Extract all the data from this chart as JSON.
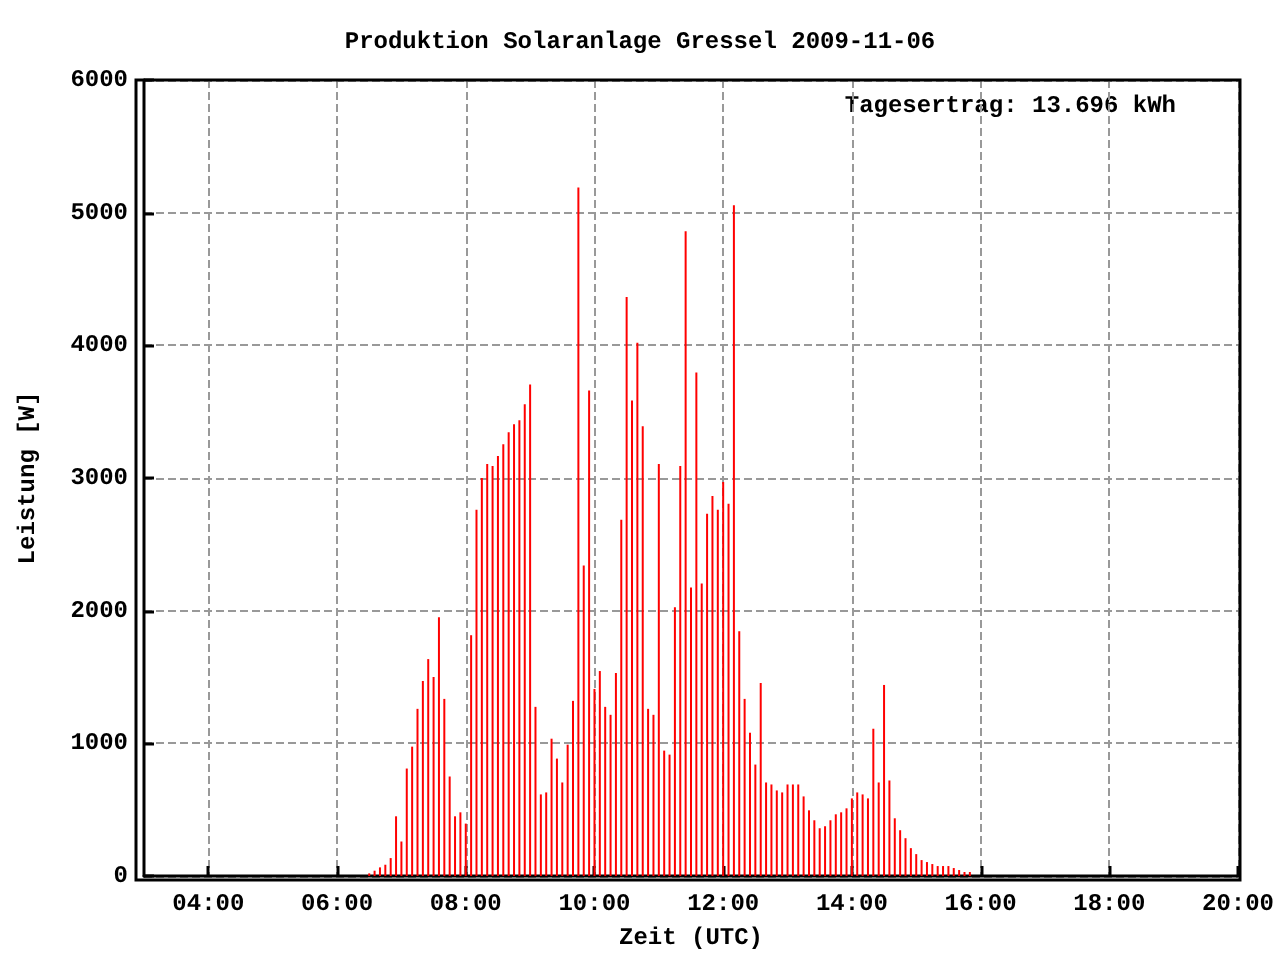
{
  "chart_data": {
    "type": "bar",
    "title": "Produktion Solaranlage Gressel 2009-11-06",
    "xlabel": "Zeit (UTC)",
    "ylabel": "Leistung [W]",
    "annotations": [
      "Tagesertrag: 13.696 kWh"
    ],
    "x": [
      6.5,
      6.5833,
      6.6667,
      6.75,
      6.8333,
      6.9167,
      7,
      7.0833,
      7.1667,
      7.25,
      7.3333,
      7.4167,
      7.5,
      7.5833,
      7.6667,
      7.75,
      7.8333,
      7.9167,
      8,
      8.0833,
      8.1667,
      8.25,
      8.3333,
      8.4167,
      8.5,
      8.5833,
      8.6667,
      8.75,
      8.8333,
      8.9167,
      9,
      9.0833,
      9.1667,
      9.25,
      9.3333,
      9.4167,
      9.5,
      9.5833,
      9.6667,
      9.75,
      9.8333,
      9.9167,
      10,
      10.0833,
      10.1667,
      10.25,
      10.3333,
      10.4167,
      10.5,
      10.5833,
      10.6667,
      10.75,
      10.8333,
      10.9167,
      11,
      11.0833,
      11.1667,
      11.25,
      11.3333,
      11.4167,
      11.5,
      11.5833,
      11.6667,
      11.75,
      11.8333,
      11.9167,
      12,
      12.0833,
      12.1667,
      12.25,
      12.3333,
      12.4167,
      12.5,
      12.5833,
      12.6667,
      12.75,
      12.8333,
      12.9167,
      13,
      13.0833,
      13.1667,
      13.25,
      13.3333,
      13.4167,
      13.5,
      13.5833,
      13.6667,
      13.75,
      13.8333,
      13.9167,
      14,
      14.0833,
      14.1667,
      14.25,
      14.3333,
      14.4167,
      14.5,
      14.5833,
      14.6667,
      14.75,
      14.8333,
      14.9167,
      15,
      15.0833,
      15.1667,
      15.25,
      15.3333,
      15.4167,
      15.5,
      15.5833,
      15.6667,
      15.75,
      15.8333
    ],
    "series": [
      {
        "color": "#ff0000",
        "values": [
          20,
          40,
          65,
          85,
          135,
          450,
          260,
          810,
          975,
          1260,
          1470,
          1635,
          1500,
          1950,
          1335,
          750,
          450,
          480,
          395,
          1815,
          2760,
          3000,
          3105,
          3090,
          3165,
          3255,
          3345,
          3405,
          3435,
          3555,
          3705,
          1275,
          615,
          630,
          1035,
          885,
          705,
          990,
          1320,
          5190,
          2340,
          3660,
          1410,
          1545,
          1275,
          1215,
          1530,
          2685,
          4365,
          3585,
          4020,
          3390,
          1260,
          1215,
          3105,
          945,
          915,
          2025,
          3090,
          4860,
          2175,
          3795,
          2205,
          2730,
          2865,
          2760,
          2970,
          2805,
          5055,
          1845,
          1335,
          1080,
          840,
          1455,
          705,
          690,
          645,
          630,
          690,
          690,
          690,
          600,
          495,
          420,
          360,
          375,
          420,
          465,
          480,
          510,
          585,
          630,
          615,
          585,
          1110,
          705,
          1440,
          720,
          435,
          345,
          285,
          210,
          165,
          120,
          105,
          90,
          75,
          75,
          75,
          60,
          45,
          30,
          30
        ]
      }
    ],
    "xlim": [
      3,
      20
    ],
    "xticks": [
      {
        "value": 4,
        "label": "04:00"
      },
      {
        "value": 6,
        "label": "06:00"
      },
      {
        "value": 8,
        "label": "08:00"
      },
      {
        "value": 10,
        "label": "10:00"
      },
      {
        "value": 12,
        "label": "12:00"
      },
      {
        "value": 14,
        "label": "14:00"
      },
      {
        "value": 16,
        "label": "16:00"
      },
      {
        "value": 18,
        "label": "18:00"
      },
      {
        "value": 20,
        "label": "20:00"
      }
    ],
    "ylim": [
      0,
      6000
    ],
    "yticks": [
      0,
      1000,
      2000,
      3000,
      4000,
      5000,
      6000
    ],
    "grid": true
  }
}
